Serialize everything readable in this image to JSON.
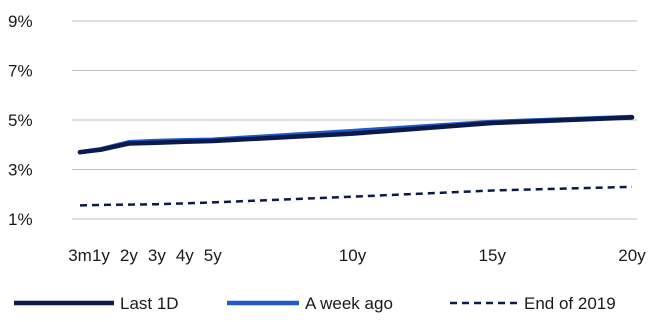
{
  "chart_data": {
    "type": "line",
    "title": "",
    "xlabel": "",
    "ylabel": "",
    "x": [
      "3m",
      "1y",
      "2y",
      "3y",
      "4y",
      "5y",
      "10y",
      "15y",
      "20y"
    ],
    "x_years": [
      0.25,
      1,
      2,
      3,
      4,
      5,
      10,
      15,
      20
    ],
    "yticks": [
      "1%",
      "3%",
      "5%",
      "7%",
      "9%"
    ],
    "ylim": [
      1,
      9
    ],
    "grid": true,
    "legend_position": "bottom",
    "series": [
      {
        "name": "Last 1D",
        "color": "#0b1a4a",
        "style": "solid",
        "values": [
          3.7,
          3.8,
          4.05,
          4.08,
          4.12,
          4.15,
          4.45,
          4.88,
          5.1
        ]
      },
      {
        "name": "A week ago",
        "color": "#1f5bc7",
        "style": "solid",
        "values": [
          3.7,
          3.82,
          4.1,
          4.15,
          4.18,
          4.2,
          4.55,
          4.92,
          5.12
        ]
      },
      {
        "name": "End of 2019",
        "color": "#0b1a4a",
        "style": "dashed",
        "values": [
          1.55,
          1.57,
          1.58,
          1.6,
          1.63,
          1.67,
          1.9,
          2.15,
          2.3
        ]
      }
    ]
  }
}
